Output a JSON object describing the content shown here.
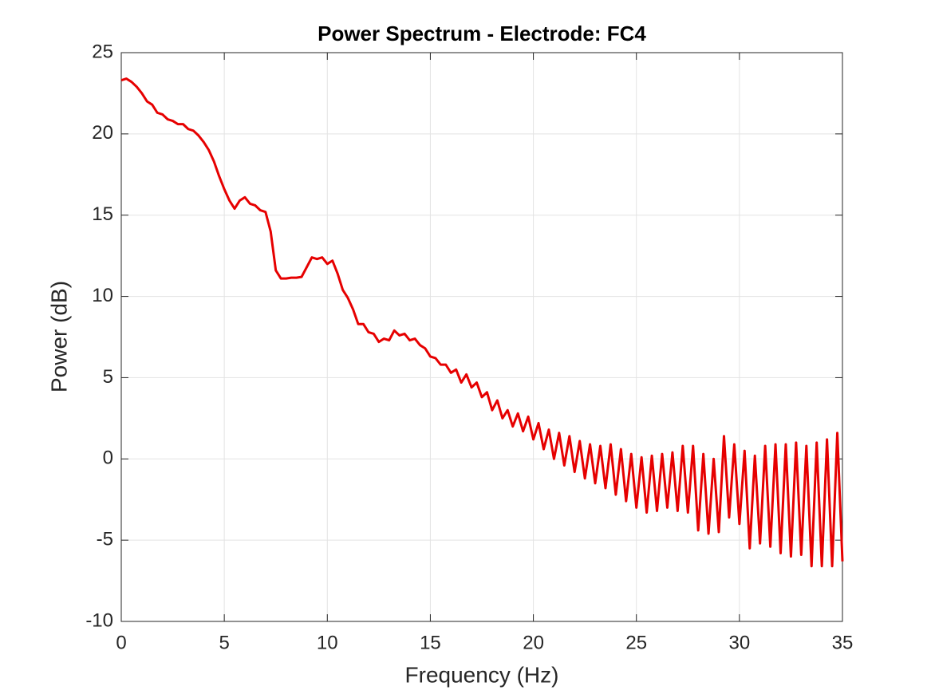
{
  "chart_data": {
    "type": "line",
    "title": "Power Spectrum - Electrode: FC4",
    "x_label": "Frequency (Hz)",
    "y_label": "Power (dB)",
    "x": [
      0,
      0.25,
      0.5,
      0.75,
      1,
      1.25,
      1.5,
      1.75,
      2,
      2.25,
      2.5,
      2.75,
      3,
      3.25,
      3.5,
      3.75,
      4,
      4.25,
      4.5,
      4.75,
      5,
      5.25,
      5.5,
      5.75,
      6,
      6.25,
      6.5,
      6.75,
      7,
      7.25,
      7.5,
      7.75,
      8,
      8.25,
      8.5,
      8.75,
      9,
      9.25,
      9.5,
      9.75,
      10,
      10.25,
      10.5,
      10.75,
      11,
      11.25,
      11.5,
      11.75,
      12,
      12.25,
      12.5,
      12.75,
      13,
      13.25,
      13.5,
      13.75,
      14,
      14.25,
      14.5,
      14.75,
      15,
      15.25,
      15.5,
      15.75,
      16,
      16.25,
      16.5,
      16.75,
      17,
      17.25,
      17.5,
      17.75,
      18,
      18.25,
      18.5,
      18.75,
      19,
      19.25,
      19.5,
      19.75,
      20,
      20.25,
      20.5,
      20.75,
      21,
      21.25,
      21.5,
      21.75,
      22,
      22.25,
      22.5,
      22.75,
      23,
      23.25,
      23.5,
      23.75,
      24,
      24.25,
      24.5,
      24.75,
      25,
      25.25,
      25.5,
      25.75,
      26,
      26.25,
      26.5,
      26.75,
      27,
      27.25,
      27.5,
      27.75,
      28,
      28.25,
      28.5,
      28.75,
      29,
      29.25,
      29.5,
      29.75,
      30,
      30.25,
      30.5,
      30.75,
      31,
      31.25,
      31.5,
      31.75,
      32,
      32.25,
      32.5,
      32.75,
      33,
      33.25,
      33.5,
      33.75,
      34,
      34.25,
      34.5,
      34.75,
      35
    ],
    "series": [
      {
        "color": "#e60000",
        "values": [
          23.3,
          23.4,
          23.2,
          22.9,
          22.5,
          22.0,
          21.8,
          21.3,
          21.2,
          20.9,
          20.8,
          20.6,
          20.6,
          20.3,
          20.2,
          19.9,
          19.5,
          19.0,
          18.3,
          17.4,
          16.6,
          15.9,
          15.4,
          15.9,
          16.1,
          15.7,
          15.6,
          15.3,
          15.2,
          14.0,
          11.6,
          11.1,
          11.1,
          11.15,
          11.15,
          11.2,
          11.8,
          12.4,
          12.3,
          12.4,
          12.0,
          12.2,
          11.4,
          10.4,
          9.9,
          9.2,
          8.3,
          8.3,
          7.8,
          7.7,
          7.2,
          7.4,
          7.3,
          7.9,
          7.6,
          7.7,
          7.3,
          7.4,
          7.0,
          6.8,
          6.3,
          6.2,
          5.8,
          5.8,
          5.3,
          5.5,
          4.7,
          5.2,
          4.4,
          4.7,
          3.8,
          4.1,
          3.0,
          3.6,
          2.5,
          3.0,
          2.0,
          2.8,
          1.7,
          2.6,
          1.2,
          2.2,
          0.6,
          1.8,
          0.0,
          1.6,
          -0.4,
          1.4,
          -0.8,
          1.1,
          -1.2,
          0.9,
          -1.5,
          0.8,
          -1.8,
          0.9,
          -2.2,
          0.6,
          -2.6,
          0.3,
          -3.0,
          0.1,
          -3.3,
          0.2,
          -3.2,
          0.3,
          -3.0,
          0.4,
          -3.2,
          0.8,
          -3.3,
          0.8,
          -4.4,
          0.3,
          -4.6,
          0.0,
          -4.5,
          1.4,
          -3.6,
          0.9,
          -4.0,
          0.5,
          -5.5,
          0.2,
          -5.2,
          0.8,
          -5.4,
          0.9,
          -5.8,
          0.9,
          -6.0,
          1.0,
          -5.9,
          0.8,
          -6.6,
          1.0,
          -6.6,
          1.2,
          -6.6,
          1.6,
          -6.3
        ]
      }
    ],
    "xlim": [
      0,
      35
    ],
    "xticks": [
      0,
      5,
      10,
      15,
      20,
      25,
      30,
      35
    ],
    "ylim": [
      -10,
      25
    ],
    "yticks": [
      -10,
      -5,
      0,
      5,
      10,
      15,
      20,
      25
    ],
    "grid": true
  }
}
